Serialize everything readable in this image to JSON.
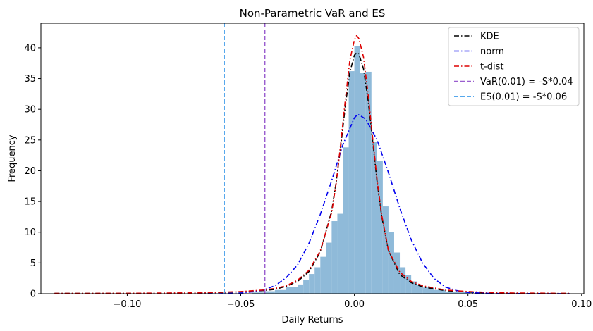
{
  "chart_data": {
    "type": "histogram",
    "title": "Non-Parametric VaR and ES",
    "xlabel": "Daily Returns",
    "ylabel": "Frequency",
    "xlim": [
      -0.138,
      0.101
    ],
    "ylim": [
      0,
      44
    ],
    "xticks": [
      -0.1,
      -0.05,
      0.0,
      0.05,
      0.1
    ],
    "xtick_labels": [
      "−0.10",
      "−0.05",
      "0.00",
      "0.05",
      "0.10"
    ],
    "yticks": [
      0,
      5,
      10,
      15,
      20,
      25,
      30,
      35,
      40
    ],
    "ytick_labels": [
      "0",
      "5",
      "10",
      "15",
      "20",
      "25",
      "30",
      "35",
      "40"
    ],
    "grid": false,
    "legend_position": "top-right",
    "histogram": {
      "color": "#8fbad9",
      "bins": [
        {
          "x0": -0.132,
          "x1": -0.045,
          "value": 0.05
        },
        {
          "x0": -0.045,
          "x1": -0.04,
          "value": 0.2
        },
        {
          "x0": -0.04,
          "x1": -0.035,
          "value": 0.4
        },
        {
          "x0": -0.035,
          "x1": -0.03,
          "value": 0.6
        },
        {
          "x0": -0.03,
          "x1": -0.025,
          "value": 1.1
        },
        {
          "x0": -0.025,
          "x1": -0.0225,
          "value": 1.5
        },
        {
          "x0": -0.0225,
          "x1": -0.02,
          "value": 2.2
        },
        {
          "x0": -0.02,
          "x1": -0.0175,
          "value": 3.2
        },
        {
          "x0": -0.0175,
          "x1": -0.015,
          "value": 4.3
        },
        {
          "x0": -0.015,
          "x1": -0.0125,
          "value": 6.0
        },
        {
          "x0": -0.0125,
          "x1": -0.01,
          "value": 8.3
        },
        {
          "x0": -0.01,
          "x1": -0.0075,
          "value": 11.8
        },
        {
          "x0": -0.0075,
          "x1": -0.005,
          "value": 13.0
        },
        {
          "x0": -0.005,
          "x1": -0.0025,
          "value": 23.8
        },
        {
          "x0": -0.0025,
          "x1": 0.0,
          "value": 36.2
        },
        {
          "x0": 0.0,
          "x1": 0.0025,
          "value": 40.3
        },
        {
          "x0": 0.0025,
          "x1": 0.005,
          "value": 35.9
        },
        {
          "x0": 0.005,
          "x1": 0.0075,
          "value": 36.1
        },
        {
          "x0": 0.0075,
          "x1": 0.01,
          "value": 24.7
        },
        {
          "x0": 0.01,
          "x1": 0.0125,
          "value": 21.6
        },
        {
          "x0": 0.0125,
          "x1": 0.015,
          "value": 14.2
        },
        {
          "x0": 0.015,
          "x1": 0.0175,
          "value": 10.0
        },
        {
          "x0": 0.0175,
          "x1": 0.02,
          "value": 6.7
        },
        {
          "x0": 0.02,
          "x1": 0.0225,
          "value": 4.3
        },
        {
          "x0": 0.0225,
          "x1": 0.025,
          "value": 3.0
        },
        {
          "x0": 0.025,
          "x1": 0.0275,
          "value": 2.0
        },
        {
          "x0": 0.0275,
          "x1": 0.03,
          "value": 1.5
        },
        {
          "x0": 0.03,
          "x1": 0.035,
          "value": 1.0
        },
        {
          "x0": 0.035,
          "x1": 0.04,
          "value": 0.6
        },
        {
          "x0": 0.04,
          "x1": 0.05,
          "value": 0.3
        },
        {
          "x0": 0.05,
          "x1": 0.096,
          "value": 0.05
        }
      ]
    },
    "series": [
      {
        "name": "KDE",
        "color": "#000000",
        "style": "dashdot",
        "x": [
          -0.132,
          -0.1,
          -0.07,
          -0.06,
          -0.05,
          -0.04,
          -0.035,
          -0.03,
          -0.025,
          -0.02,
          -0.015,
          -0.01,
          -0.008,
          -0.006,
          -0.004,
          -0.002,
          0.0,
          0.001,
          0.002,
          0.004,
          0.006,
          0.008,
          0.01,
          0.012,
          0.015,
          0.02,
          0.025,
          0.03,
          0.04,
          0.05,
          0.06,
          0.07,
          0.095
        ],
        "values": [
          0.05,
          0.05,
          0.1,
          0.2,
          0.3,
          0.5,
          0.7,
          1.2,
          2.0,
          3.6,
          6.8,
          13.5,
          18.2,
          24.0,
          30.5,
          36.0,
          38.8,
          39.2,
          39.0,
          36.6,
          31.6,
          25.0,
          18.2,
          12.6,
          7.0,
          3.1,
          1.8,
          1.1,
          0.5,
          0.25,
          0.1,
          0.05,
          0.03
        ]
      },
      {
        "name": "norm",
        "color": "#0000ee",
        "style": "dashdot",
        "x": [
          -0.132,
          -0.06,
          -0.05,
          -0.045,
          -0.04,
          -0.035,
          -0.03,
          -0.025,
          -0.02,
          -0.015,
          -0.01,
          -0.005,
          0.0,
          0.0015,
          0.005,
          0.01,
          0.015,
          0.02,
          0.025,
          0.03,
          0.035,
          0.04,
          0.045,
          0.05,
          0.06,
          0.095
        ],
        "values": [
          0.0,
          0.0,
          0.1,
          0.3,
          0.6,
          1.3,
          2.6,
          4.7,
          8.2,
          12.9,
          18.4,
          24.3,
          28.6,
          29.2,
          28.4,
          25.0,
          19.7,
          13.9,
          8.8,
          5.0,
          2.5,
          1.1,
          0.5,
          0.2,
          0.05,
          0.0
        ]
      },
      {
        "name": "t-dist",
        "color": "#dd0000",
        "style": "dashdot",
        "x": [
          -0.132,
          -0.1,
          -0.07,
          -0.06,
          -0.05,
          -0.04,
          -0.035,
          -0.03,
          -0.025,
          -0.02,
          -0.015,
          -0.01,
          -0.008,
          -0.006,
          -0.004,
          -0.002,
          0.0,
          0.001,
          0.002,
          0.004,
          0.006,
          0.008,
          0.01,
          0.012,
          0.015,
          0.02,
          0.025,
          0.03,
          0.04,
          0.05,
          0.06,
          0.07,
          0.095
        ],
        "values": [
          0.05,
          0.07,
          0.15,
          0.22,
          0.35,
          0.6,
          0.85,
          1.3,
          2.2,
          3.8,
          7.0,
          13.2,
          18.0,
          24.5,
          31.5,
          38.0,
          41.3,
          42.0,
          41.5,
          38.5,
          32.6,
          25.5,
          18.5,
          12.8,
          7.0,
          3.5,
          2.0,
          1.3,
          0.6,
          0.35,
          0.2,
          0.12,
          0.06
        ]
      }
    ],
    "vlines": [
      {
        "name": "VaR(0.01) = -S*0.04",
        "x": -0.0394,
        "color": "#9a5ecf",
        "style": "dashed"
      },
      {
        "name": "ES(0.01) = -S*0.06",
        "x": -0.0573,
        "color": "#1f8be6",
        "style": "dashed"
      }
    ],
    "legend": [
      {
        "label": "KDE",
        "color": "#000000",
        "style": "dashdot"
      },
      {
        "label": "norm",
        "color": "#0000ee",
        "style": "dashdot"
      },
      {
        "label": "t-dist",
        "color": "#dd0000",
        "style": "dashdot"
      },
      {
        "label": "VaR(0.01) = -S*0.04",
        "color": "#9a5ecf",
        "style": "dashed"
      },
      {
        "label": "ES(0.01) = -S*0.06",
        "color": "#1f8be6",
        "style": "dashed"
      }
    ]
  }
}
